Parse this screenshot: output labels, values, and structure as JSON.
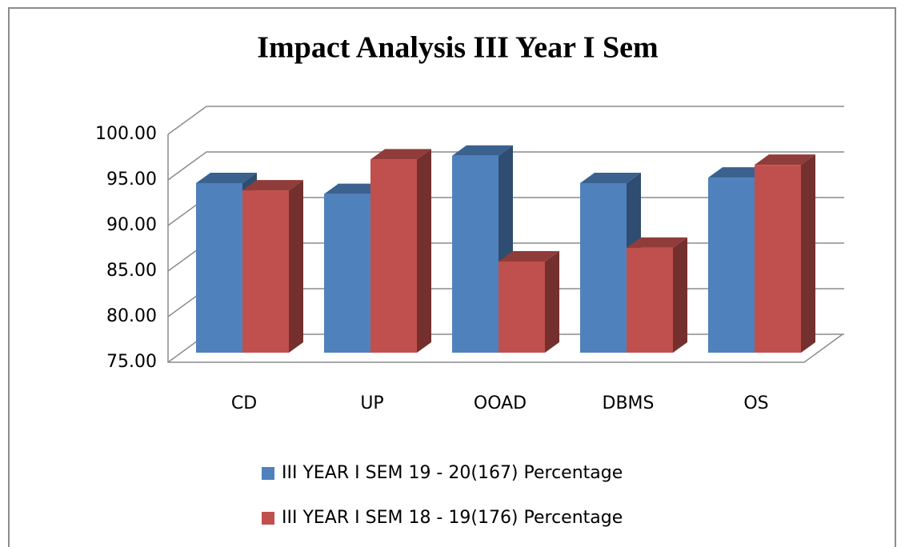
{
  "chart_data": {
    "type": "bar3d",
    "title": "Impact Analysis III Year I Sem",
    "categories": [
      "CD",
      "UP",
      "OOAD",
      "DBMS",
      "OS"
    ],
    "series": [
      {
        "name": "III YEAR I SEM 19 - 20(167) Percentage",
        "color": "#4f81bd",
        "values": [
          93.6,
          92.4,
          96.6,
          93.6,
          94.2
        ]
      },
      {
        "name": "III YEAR I SEM 18 - 19(176) Percentage",
        "color": "#c0504d",
        "values": [
          92.8,
          96.2,
          85.0,
          86.5,
          95.6
        ]
      }
    ],
    "ylim": [
      75,
      100
    ],
    "yticks": [
      {
        "value": 75,
        "label": "75.00"
      },
      {
        "value": 80,
        "label": "80.00"
      },
      {
        "value": 85,
        "label": "85.00"
      },
      {
        "value": 90,
        "label": "90.00"
      },
      {
        "value": 95,
        "label": "95.00"
      },
      {
        "value": 100,
        "label": "100.00"
      }
    ],
    "grid": true,
    "legend": "bottom"
  }
}
